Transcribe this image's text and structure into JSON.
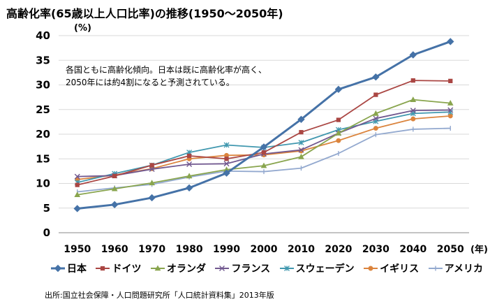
{
  "title": "高齢化率(65歳以上人口比率)の推移(1950～2050年)",
  "source": "出所:国立社会保障・人口問題研究所「人口統計資料集」2013年版",
  "chart_data": {
    "type": "line",
    "unit_label": "(%)",
    "x_unit_label": "(年)",
    "ylim": [
      0,
      40
    ],
    "yticks": [
      0,
      5,
      10,
      15,
      20,
      25,
      30,
      35,
      40
    ],
    "x": [
      1950,
      1960,
      1970,
      1980,
      1990,
      2000,
      2010,
      2020,
      2030,
      2040,
      2050
    ],
    "grid": "horizontal",
    "legend_position": "bottom",
    "annotation_lines": [
      "各国ともに高齢化傾向。日本は既に高齢化率が高く、",
      "2050年には約4割になると予測されている。"
    ],
    "series": [
      {
        "name": "日本",
        "color": "#4572A7",
        "marker": "diamond",
        "values": [
          4.9,
          5.7,
          7.1,
          9.1,
          12.1,
          17.4,
          23.0,
          29.1,
          31.6,
          36.1,
          38.8
        ]
      },
      {
        "name": "ドイツ",
        "color": "#AA4643",
        "marker": "square",
        "values": [
          9.7,
          11.5,
          13.7,
          15.6,
          15.0,
          16.3,
          20.4,
          22.9,
          28.0,
          30.9,
          30.8
        ]
      },
      {
        "name": "オランダ",
        "color": "#89A54E",
        "marker": "triangle",
        "values": [
          7.7,
          8.9,
          10.1,
          11.5,
          12.8,
          13.6,
          15.4,
          20.2,
          24.2,
          27.0,
          26.3
        ]
      },
      {
        "name": "フランス",
        "color": "#71588F",
        "marker": "x",
        "values": [
          11.4,
          11.6,
          12.9,
          13.9,
          14.0,
          16.0,
          16.8,
          20.2,
          23.2,
          24.8,
          24.9
        ]
      },
      {
        "name": "スウェーデン",
        "color": "#4198AF",
        "marker": "star",
        "values": [
          10.2,
          12.0,
          13.7,
          16.3,
          17.8,
          17.3,
          18.3,
          20.9,
          22.6,
          24.2,
          24.5
        ]
      },
      {
        "name": "イギリス",
        "color": "#DB843D",
        "marker": "circle",
        "values": [
          10.8,
          11.7,
          13.0,
          15.0,
          15.7,
          15.8,
          16.6,
          18.7,
          21.2,
          23.1,
          23.7
        ]
      },
      {
        "name": "アメリカ",
        "color": "#93A9CF",
        "marker": "plus",
        "values": [
          8.3,
          9.1,
          9.8,
          11.3,
          12.5,
          12.4,
          13.1,
          16.1,
          19.9,
          21.0,
          21.2
        ]
      }
    ]
  }
}
